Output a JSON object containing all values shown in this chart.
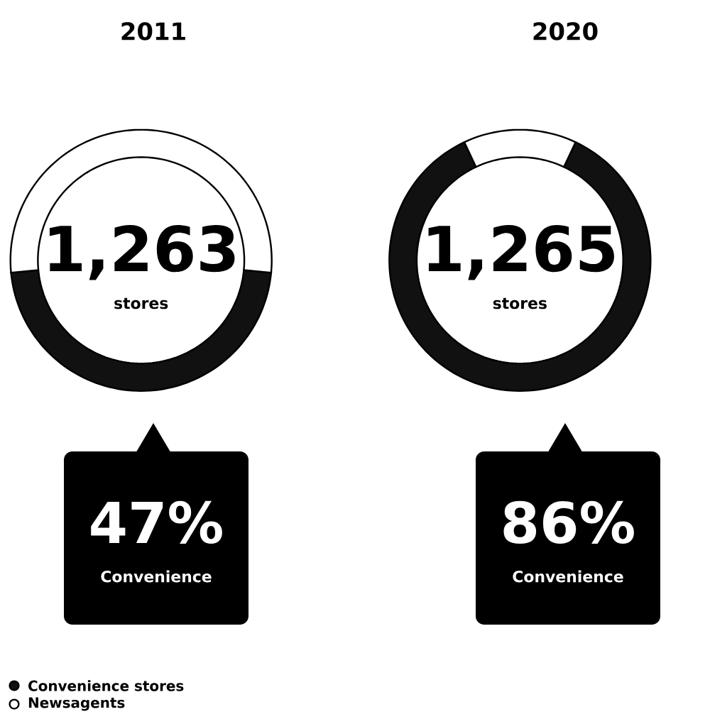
{
  "chart_data": [
    {
      "type": "donut",
      "title": "2011",
      "categories": [
        "Convenience stores",
        "Newsagents"
      ],
      "values": [
        47,
        53
      ],
      "colors": [
        "#111111",
        "#ffffff"
      ],
      "value_labels": [
        "47%",
        null
      ],
      "annotations": [
        "1,263",
        "stores",
        "Convenience"
      ],
      "legend": "bottom left"
    },
    {
      "type": "donut",
      "title": "2020",
      "categories": [
        null,
        null
      ],
      "values": [
        86,
        14
      ],
      "colors": [
        "#111111",
        "#ffffff"
      ],
      "value_labels": [
        "86%",
        null
      ],
      "annotations": [
        "1,265",
        "stores",
        "Convenience"
      ]
    }
  ]
}
